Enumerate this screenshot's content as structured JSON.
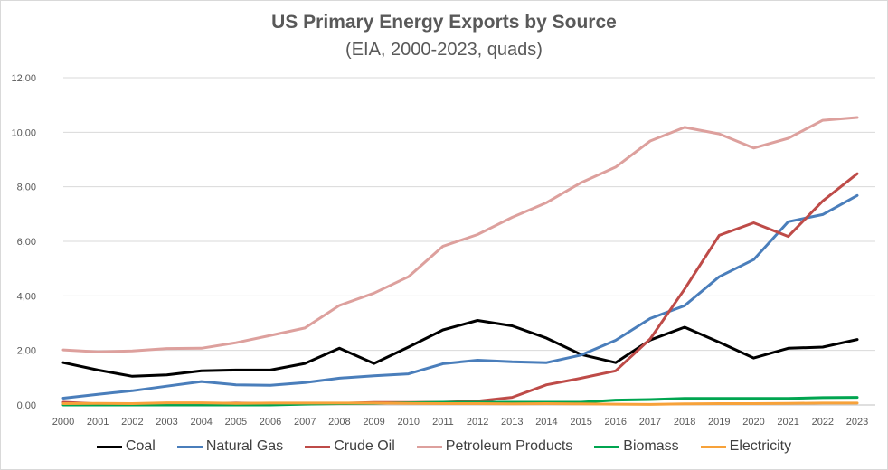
{
  "chart_data": {
    "type": "line",
    "title": "US Primary Energy Exports by Source",
    "subtitle": "(EIA, 2000-2023, quads)",
    "xlabel": "",
    "ylabel": "",
    "ylim": [
      0,
      12
    ],
    "y_ticks": [
      "0,00",
      "2,00",
      "4,00",
      "6,00",
      "8,00",
      "10,00",
      "12,00"
    ],
    "grid": "horizontal",
    "legend_position": "bottom",
    "x": [
      "2000",
      "2001",
      "2002",
      "2003",
      "2004",
      "2005",
      "2006",
      "2007",
      "2008",
      "2009",
      "2010",
      "2011",
      "2012",
      "2013",
      "2014",
      "2015",
      "2016",
      "2017",
      "2018",
      "2019",
      "2020",
      "2021",
      "2022",
      "2023"
    ],
    "series": [
      {
        "name": "Coal",
        "color": "#000000",
        "values": [
          1.55,
          1.28,
          1.05,
          1.1,
          1.25,
          1.28,
          1.28,
          1.52,
          2.08,
          1.52,
          2.12,
          2.75,
          3.1,
          2.9,
          2.45,
          1.85,
          1.55,
          2.38,
          2.85,
          2.3,
          1.72,
          2.08,
          2.12,
          2.4
        ]
      },
      {
        "name": "Natural Gas",
        "color": "#4a7ebb",
        "values": [
          0.25,
          0.39,
          0.52,
          0.69,
          0.86,
          0.74,
          0.72,
          0.82,
          0.98,
          1.07,
          1.14,
          1.51,
          1.64,
          1.58,
          1.55,
          1.83,
          2.37,
          3.17,
          3.64,
          4.7,
          5.33,
          6.72,
          6.98,
          7.68
        ]
      },
      {
        "name": "Crude Oil",
        "color": "#be4b48",
        "values": [
          0.1,
          0.04,
          0.02,
          0.03,
          0.06,
          0.07,
          0.05,
          0.06,
          0.06,
          0.09,
          0.09,
          0.1,
          0.14,
          0.28,
          0.74,
          0.98,
          1.25,
          2.42,
          4.25,
          6.22,
          6.68,
          6.18,
          7.48,
          8.48
        ]
      },
      {
        "name": "Petroleum Products",
        "color": "#dda09d",
        "values": [
          2.02,
          1.95,
          1.98,
          2.07,
          2.08,
          2.28,
          2.55,
          2.82,
          3.65,
          4.1,
          4.7,
          5.82,
          6.25,
          6.88,
          7.42,
          8.15,
          8.72,
          9.68,
          10.18,
          9.94,
          9.42,
          9.78,
          10.44,
          10.54
        ]
      },
      {
        "name": "Biomass",
        "color": "#00a550",
        "values": [
          0.0,
          0.0,
          0.0,
          0.0,
          0.0,
          0.0,
          0.0,
          0.03,
          0.05,
          0.06,
          0.08,
          0.1,
          0.1,
          0.1,
          0.1,
          0.1,
          0.18,
          0.2,
          0.24,
          0.24,
          0.24,
          0.24,
          0.27,
          0.28
        ]
      },
      {
        "name": "Electricity",
        "color": "#f7a23a",
        "values": [
          0.05,
          0.06,
          0.05,
          0.08,
          0.08,
          0.06,
          0.07,
          0.07,
          0.07,
          0.07,
          0.06,
          0.05,
          0.05,
          0.04,
          0.05,
          0.04,
          0.03,
          0.02,
          0.04,
          0.05,
          0.05,
          0.06,
          0.07,
          0.07
        ]
      }
    ]
  }
}
